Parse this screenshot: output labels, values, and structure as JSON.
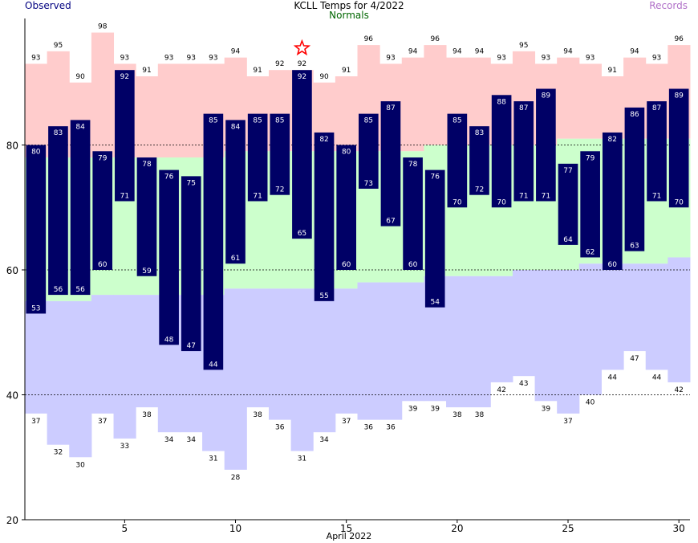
{
  "header": {
    "title": "KCLL Temps for 4/2022",
    "observed_label": "Observed",
    "normals_label": "Normals",
    "records_label": "Records"
  },
  "colors": {
    "observed_bar": "#000066",
    "record_high_band": "#ffcccc",
    "normal_band": "#ccffcc",
    "record_low_band": "#ccccff",
    "record_star": "#ff0000",
    "title_text": "#000000",
    "observed_text": "#000080",
    "normals_text": "#006600",
    "records_text": "#b070c8"
  },
  "chart_data": {
    "type": "bar",
    "xlabel": "April 2022",
    "ylabel": "",
    "ylim": [
      20,
      100
    ],
    "yticks": [
      20,
      40,
      60,
      80
    ],
    "xticks": [
      5,
      10,
      15,
      20,
      25,
      30
    ],
    "gridlines_y": [
      40,
      60,
      80
    ],
    "days": [
      1,
      2,
      3,
      4,
      5,
      6,
      7,
      8,
      9,
      10,
      11,
      12,
      13,
      14,
      15,
      16,
      17,
      18,
      19,
      20,
      21,
      22,
      23,
      24,
      25,
      26,
      27,
      28,
      29,
      30
    ],
    "series": [
      {
        "name": "Observed High",
        "values": [
          80,
          83,
          84,
          79,
          92,
          78,
          76,
          75,
          85,
          84,
          85,
          85,
          92,
          82,
          80,
          85,
          87,
          78,
          76,
          85,
          83,
          88,
          87,
          89,
          77,
          79,
          82,
          86,
          87,
          89
        ]
      },
      {
        "name": "Observed Low",
        "values": [
          53,
          56,
          56,
          60,
          71,
          59,
          48,
          47,
          44,
          61,
          71,
          72,
          65,
          55,
          60,
          73,
          67,
          60,
          54,
          70,
          72,
          70,
          71,
          71,
          64,
          62,
          60,
          63,
          71,
          70
        ]
      },
      {
        "name": "Record High",
        "values": [
          93,
          95,
          90,
          98,
          93,
          91,
          93,
          93,
          93,
          94,
          91,
          92,
          92,
          90,
          91,
          96,
          93,
          94,
          96,
          94,
          94,
          93,
          95,
          93,
          94,
          93,
          91,
          94,
          93,
          96
        ]
      },
      {
        "name": "Record Low",
        "values": [
          37,
          32,
          30,
          37,
          33,
          38,
          34,
          34,
          31,
          28,
          38,
          36,
          31,
          34,
          37,
          36,
          36,
          39,
          39,
          38,
          38,
          42,
          43,
          39,
          37,
          40,
          44,
          47,
          44,
          42
        ]
      },
      {
        "name": "Normal High",
        "values": [
          78,
          78,
          78,
          78,
          78,
          78,
          78,
          78,
          78,
          79,
          79,
          79,
          79,
          79,
          79,
          79,
          79,
          79,
          80,
          80,
          80,
          80,
          80,
          80,
          81,
          81,
          81,
          81,
          81,
          81
        ]
      },
      {
        "name": "Normal Low",
        "values": [
          55,
          55,
          55,
          56,
          56,
          56,
          56,
          56,
          56,
          57,
          57,
          57,
          57,
          57,
          57,
          58,
          58,
          58,
          59,
          59,
          59,
          59,
          60,
          60,
          60,
          61,
          61,
          61,
          61,
          62
        ]
      }
    ],
    "record_set_days": [
      13
    ]
  }
}
